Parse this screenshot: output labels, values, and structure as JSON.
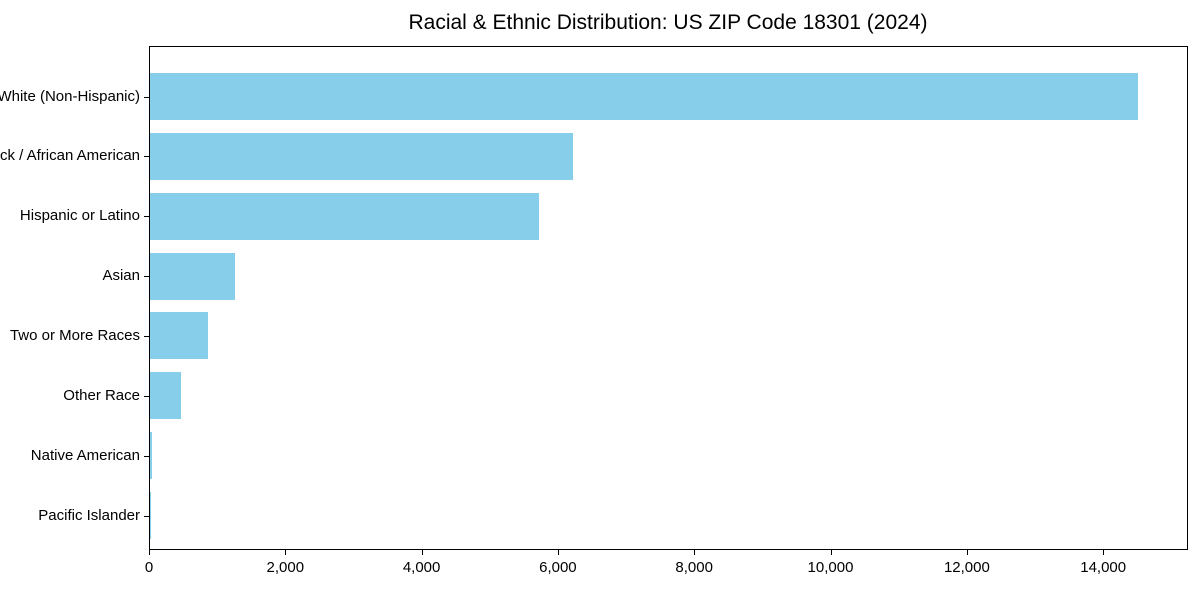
{
  "chart_data": {
    "type": "bar",
    "orientation": "horizontal",
    "title": "Racial & Ethnic Distribution: US ZIP Code 18301 (2024)",
    "categories": [
      "White (Non-Hispanic)",
      "Black / African American",
      "Hispanic or Latino",
      "Asian",
      "Two or More Races",
      "Other Race",
      "Native American",
      "Pacific Islander"
    ],
    "values": [
      14500,
      6200,
      5700,
      1250,
      850,
      450,
      25,
      10
    ],
    "xlabel": "",
    "ylabel": "",
    "xlim": [
      0,
      15230
    ],
    "x_ticks": [
      0,
      2000,
      4000,
      6000,
      8000,
      10000,
      12000,
      14000
    ],
    "x_tick_labels": [
      "0",
      "2,000",
      "4,000",
      "6,000",
      "8,000",
      "10,000",
      "12,000",
      "14,000"
    ],
    "bar_color": "#87CEEB",
    "axis_color": "#000000",
    "text_color": "#000000",
    "background_color": "#FFFFFF",
    "grid": false,
    "legend": "none"
  }
}
